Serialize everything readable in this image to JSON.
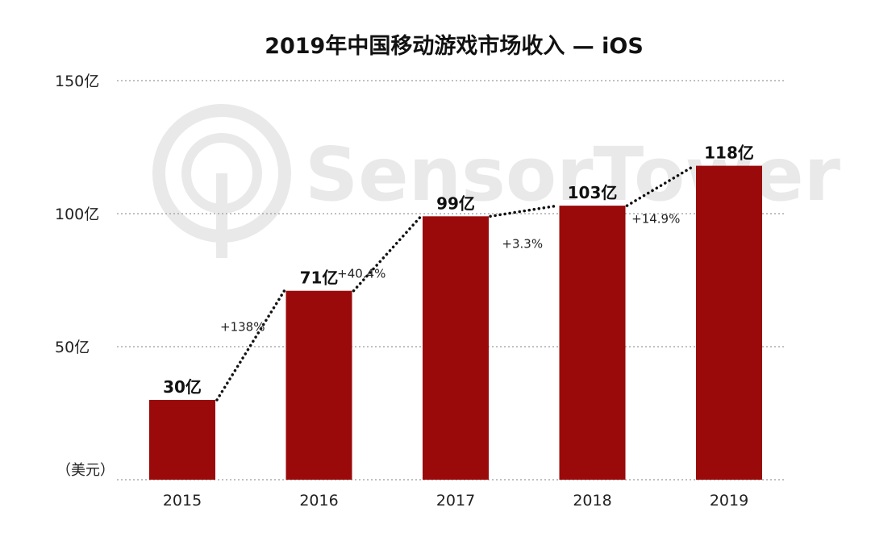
{
  "chart_data": {
    "type": "bar",
    "title": "2019年中国移动游戏市场收入 — iOS",
    "unit_label": "（美元）",
    "categories": [
      "2015",
      "2016",
      "2017",
      "2018",
      "2019"
    ],
    "values": [
      30,
      71,
      99,
      103,
      118
    ],
    "value_labels": [
      "30亿",
      "71亿",
      "99亿",
      "103亿",
      "118亿"
    ],
    "growth_labels": [
      "+138%",
      "+40.4%",
      "+3.3%",
      "+14.9%"
    ],
    "yticks": [
      50,
      100,
      150
    ],
    "ytick_labels": [
      "50亿",
      "100亿",
      "150亿"
    ],
    "ylim": [
      0,
      150
    ],
    "grid": true,
    "bar_color": "#9a0a0a",
    "trend_line": "dotted",
    "watermark": "SensorTower"
  }
}
